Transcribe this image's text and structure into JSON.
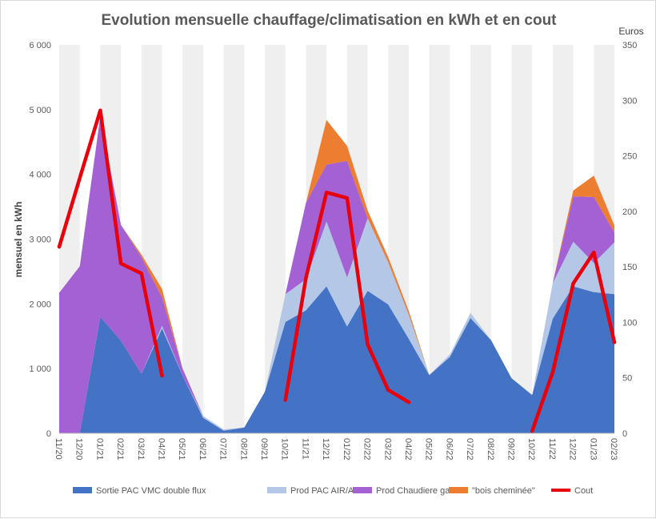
{
  "chart_data": {
    "type": "area",
    "title": "Evolution  mensuelle  chauffage/climatisation  en kWh et en cout",
    "ylabel": "mensuel en kWh",
    "y2label": "Euros",
    "ylim": [
      0,
      6000
    ],
    "y2lim": [
      0,
      350
    ],
    "yticks": [
      "0",
      "1 000",
      "2 000",
      "3 000",
      "4 000",
      "5 000",
      "6 000"
    ],
    "yticks_values": [
      0,
      1000,
      2000,
      3000,
      4000,
      5000,
      6000
    ],
    "y2ticks": [
      "0",
      "50",
      "100",
      "150",
      "200",
      "250",
      "300",
      "350"
    ],
    "y2ticks_values": [
      0,
      50,
      100,
      150,
      200,
      250,
      300,
      350
    ],
    "categories": [
      "11/20",
      "12/20",
      "01/21",
      "02/21",
      "03/21",
      "04/21",
      "05/21",
      "06/21",
      "07/21",
      "08/21",
      "09/21",
      "10/21",
      "11/21",
      "12/21",
      "01/22",
      "02/22",
      "03/22",
      "04/22",
      "05/22",
      "06/22",
      "07/22",
      "08/22",
      "09/22",
      "10/22",
      "11/22",
      "12/22",
      "01/23",
      "02/23"
    ],
    "series": [
      {
        "name": "Sortie PAC VMC double flux",
        "color": "#4472c4",
        "stacked": true,
        "values": [
          0,
          0,
          1800,
          1430,
          920,
          1620,
          890,
          240,
          40,
          90,
          640,
          1720,
          1900,
          2270,
          1650,
          2200,
          1990,
          1460,
          900,
          1180,
          1780,
          1440,
          850,
          590,
          1770,
          2270,
          2180,
          2150
        ]
      },
      {
        "name": "Prod PAC AIR/AIR",
        "color": "#b4c7e7",
        "stacked": true,
        "values": [
          0,
          0,
          0,
          0,
          0,
          40,
          0,
          30,
          20,
          0,
          0,
          430,
          480,
          1000,
          760,
          1120,
          650,
          370,
          0,
          40,
          80,
          0,
          0,
          0,
          550,
          690,
          450,
          800
        ]
      },
      {
        "name": "Prod Chaudiere gaz",
        "color": "#a361d4",
        "stacked": true,
        "values": [
          2170,
          2580,
          3100,
          1790,
          1800,
          440,
          110,
          0,
          0,
          0,
          0,
          0,
          1180,
          880,
          1800,
          0,
          0,
          0,
          0,
          0,
          0,
          0,
          0,
          0,
          0,
          700,
          1020,
          150
        ]
      },
      {
        "name": "\"bois cheminée\"",
        "color": "#ed7d31",
        "stacked": true,
        "values": [
          0,
          0,
          0,
          0,
          40,
          130,
          0,
          0,
          0,
          0,
          0,
          0,
          0,
          690,
          230,
          120,
          80,
          60,
          0,
          0,
          0,
          0,
          0,
          0,
          0,
          90,
          330,
          110
        ]
      },
      {
        "name": "Cout",
        "color": "#e8000b",
        "axis": "secondary",
        "type": "line",
        "values": [
          168,
          230,
          291,
          153,
          144,
          52,
          null,
          null,
          null,
          null,
          null,
          30,
          140,
          217,
          212,
          80,
          39,
          28,
          null,
          null,
          null,
          null,
          null,
          2,
          55,
          135,
          163,
          82
        ]
      }
    ],
    "legend_position": "bottom",
    "grid": false,
    "background_bands": "alternating-vertical"
  }
}
